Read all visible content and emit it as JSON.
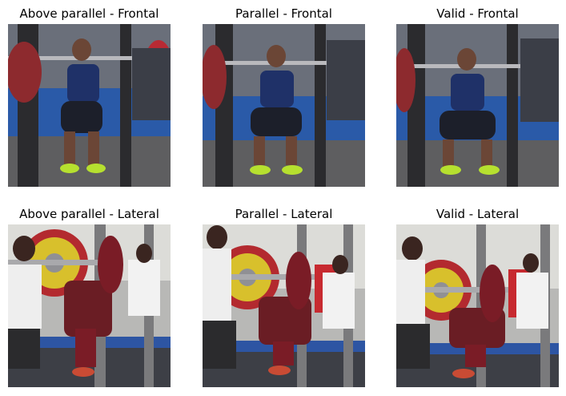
{
  "figure": {
    "panels": [
      {
        "title": "Above parallel - Frontal",
        "view": "frontal",
        "depth": "above-parallel"
      },
      {
        "title": "Parallel - Frontal",
        "view": "frontal",
        "depth": "parallel"
      },
      {
        "title": "Valid - Frontal",
        "view": "frontal",
        "depth": "valid"
      },
      {
        "title": "Above parallel - Lateral",
        "view": "lateral",
        "depth": "above-parallel"
      },
      {
        "title": "Parallel - Lateral",
        "view": "lateral",
        "depth": "parallel"
      },
      {
        "title": "Valid - Lateral",
        "view": "lateral",
        "depth": "valid"
      }
    ]
  }
}
